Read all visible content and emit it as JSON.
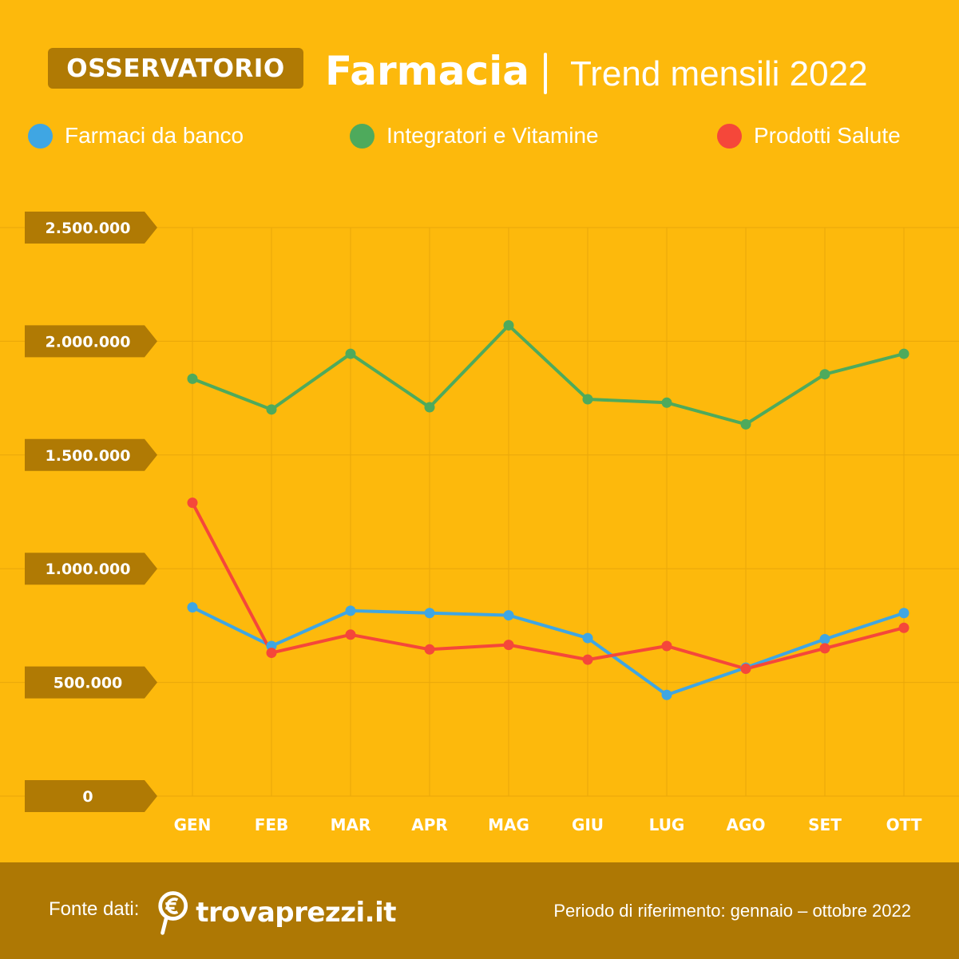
{
  "header": {
    "badge": "OSSERVATORIO",
    "title": "Farmacia",
    "subtitle": "Trend mensili 2022"
  },
  "footer": {
    "source_label": "Fonte dati:",
    "logo_text": "trovaprezzi.it",
    "period": "Periodo di riferimento: gennaio – ottobre 2022"
  },
  "colors": {
    "background": "#FDB90C",
    "badge": "#B07A04",
    "footer": "#AE7804",
    "grid": "#E9A80A"
  },
  "chart_data": {
    "type": "line",
    "categories": [
      "GEN",
      "FEB",
      "MAR",
      "APR",
      "MAG",
      "GIU",
      "LUG",
      "AGO",
      "SET",
      "OTT"
    ],
    "ylim": [
      0,
      2500000
    ],
    "yticks": [
      0,
      500000,
      1000000,
      1500000,
      2000000,
      2500000
    ],
    "ytick_labels": [
      "0",
      "500.000",
      "1.000.000",
      "1.500.000",
      "2.000.000",
      "2.500.000"
    ],
    "grid": true,
    "legend_position": "top",
    "series": [
      {
        "name": "Farmaci da banco",
        "color": "#3FA6E3",
        "values": [
          830000,
          660000,
          815000,
          805000,
          795000,
          695000,
          445000,
          565000,
          690000,
          805000
        ]
      },
      {
        "name": "Integratori e Vitamine",
        "color": "#4EAA5C",
        "values": [
          1835000,
          1700000,
          1945000,
          1710000,
          2070000,
          1745000,
          1730000,
          1635000,
          1855000,
          1945000
        ]
      },
      {
        "name": "Prodotti Salute",
        "color": "#F5473A",
        "values": [
          1290000,
          630000,
          710000,
          645000,
          665000,
          600000,
          660000,
          560000,
          650000,
          740000
        ]
      }
    ]
  }
}
